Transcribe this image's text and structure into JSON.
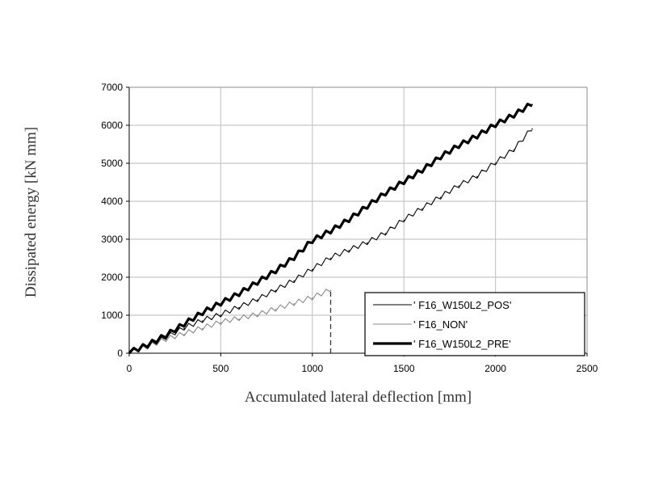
{
  "chart_data": {
    "type": "line",
    "title": "",
    "xlabel": "Accumulated lateral deflection [mm]",
    "ylabel": "Dissipated energy [kN mm]",
    "xlim": [
      0,
      2500
    ],
    "ylim": [
      0,
      7000
    ],
    "x_ticks": [
      "0",
      "500",
      "1000",
      "1500",
      "2000",
      "2500"
    ],
    "y_ticks": [
      "0",
      "1000",
      "2000",
      "3000",
      "4000",
      "5000",
      "6000",
      "7000"
    ],
    "grid": true,
    "legend_position": "bottom-right",
    "annotations": [
      {
        "type": "vertical-dashed-line",
        "x": 1100,
        "y_from": 0,
        "y_to": 1700
      }
    ],
    "series": [
      {
        "name": "' F16_W150L2_POS'",
        "color": "#000000",
        "line_style": "thin",
        "x": [
          0,
          100,
          200,
          300,
          400,
          500,
          600,
          700,
          800,
          900,
          1000,
          1100,
          1200,
          1300,
          1400,
          1500,
          1600,
          1700,
          1800,
          1900,
          2000,
          2100,
          2200
        ],
        "y": [
          0,
          150,
          400,
          650,
          850,
          1000,
          1200,
          1400,
          1650,
          1900,
          2200,
          2500,
          2700,
          2900,
          3150,
          3500,
          3800,
          4100,
          4400,
          4650,
          5000,
          5350,
          5900
        ]
      },
      {
        "name": "' F16_NON'",
        "color": "#888888",
        "line_style": "thin",
        "x": [
          0,
          100,
          200,
          300,
          400,
          500,
          600,
          700,
          800,
          900,
          1000,
          1100
        ],
        "y": [
          0,
          150,
          350,
          500,
          650,
          800,
          900,
          1000,
          1150,
          1300,
          1450,
          1650
        ]
      },
      {
        "name": "' F16_W150L2_PRE'",
        "color": "#000000",
        "line_style": "thick",
        "x": [
          0,
          100,
          200,
          300,
          400,
          500,
          600,
          700,
          800,
          900,
          1000,
          1100,
          1200,
          1300,
          1400,
          1500,
          1600,
          1700,
          1800,
          1900,
          2000,
          2100,
          2200
        ],
        "y": [
          0,
          200,
          450,
          750,
          1050,
          1300,
          1550,
          1850,
          2150,
          2500,
          2950,
          3200,
          3500,
          3850,
          4200,
          4500,
          4800,
          5150,
          5450,
          5700,
          6000,
          6250,
          6550
        ]
      }
    ]
  }
}
